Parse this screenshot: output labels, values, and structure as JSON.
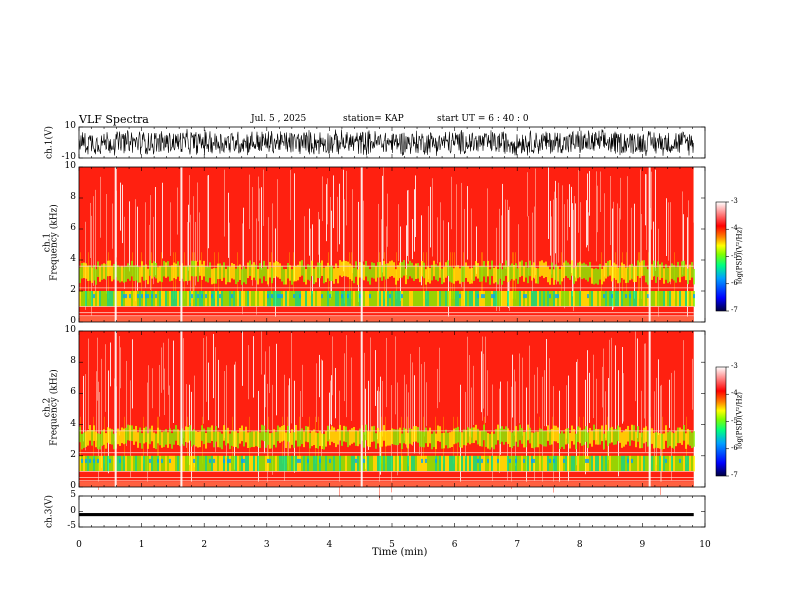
{
  "header": {
    "title": "VLF Spectra",
    "date": "Jul. 5 , 2025",
    "station": "station= KAP",
    "start": "start UT = 6 : 40 : 0"
  },
  "chart_data": [
    {
      "type": "line",
      "name_label": "ch.1(V)",
      "ylabel": "ch.1(V)",
      "ylim": [
        -10,
        10
      ],
      "y_ticks": [
        "10",
        "-10"
      ],
      "description_values": {
        "min": -10,
        "max": 10
      }
    },
    {
      "type": "heatmap",
      "ylabel_line1": "ch.1",
      "ylabel_line2": "Frequency (kHz)",
      "ylim": [
        0,
        10
      ],
      "y_ticks": [
        "0",
        "2",
        "4",
        "6",
        "8",
        "10"
      ],
      "colorbar": {
        "label": "log(PSD)(V²/Hz)",
        "min": -7,
        "max": -3,
        "ticks": [
          "-3",
          "-4",
          "-5",
          "-6",
          "-7"
        ]
      }
    },
    {
      "type": "heatmap",
      "ylabel_line1": "ch.2",
      "ylabel_line2": "Frequency (kHz)",
      "ylim": [
        0,
        10
      ],
      "y_ticks": [
        "0",
        "2",
        "4",
        "6",
        "8",
        "10"
      ],
      "colorbar": {
        "label": "log(PSD)(V²/Hz)",
        "min": -7,
        "max": -3,
        "ticks": [
          "-3",
          "-4",
          "-5",
          "-6",
          "-7"
        ]
      }
    },
    {
      "type": "line",
      "ylabel": "ch.3(V)",
      "ylim": [
        -5,
        5
      ],
      "y_ticks": [
        "5",
        "0",
        "-5"
      ],
      "values_approx": {
        "level": -1
      }
    }
  ],
  "x_axis": {
    "label": "Time (min)",
    "xlim": [
      0,
      10
    ],
    "ticks": [
      "0",
      "1",
      "2",
      "3",
      "4",
      "5",
      "6",
      "7",
      "8",
      "9",
      "10"
    ]
  },
  "colors": {
    "background": "#ffffff",
    "trace": "#000000",
    "colormap": [
      "#000040",
      "#0000ff",
      "#00a0ff",
      "#00ff80",
      "#80ff00",
      "#ffff00",
      "#ff8000",
      "#ff0000",
      "#ffffff"
    ]
  }
}
